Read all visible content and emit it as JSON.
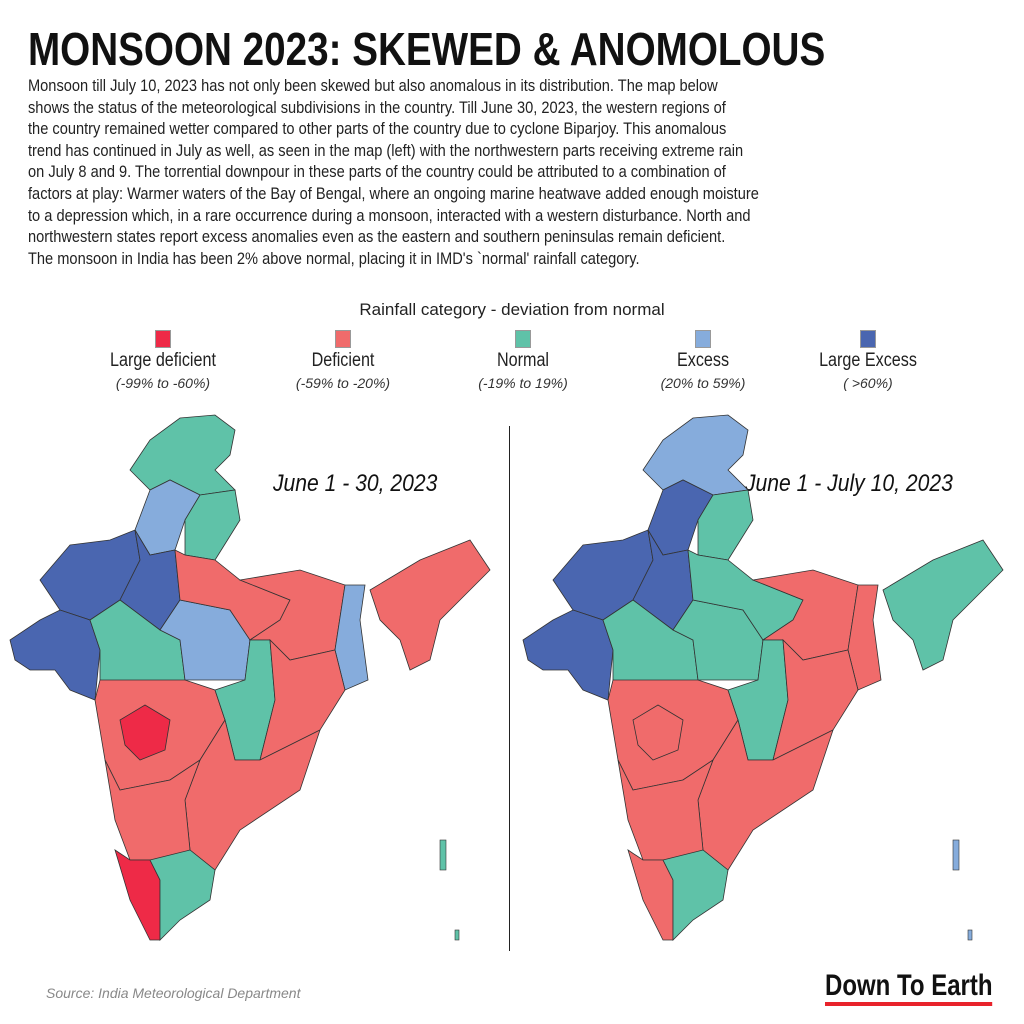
{
  "title": "MONSOON 2023: SKEWED & ANOMOLOUS",
  "paragraph_lines": [
    "Monsoon till July 10, 2023 has not only been skewed but also anomalous in its distribution. The map below",
    "shows the status of the meteorological subdivisions in the country. Till June 30, 2023, the western regions of",
    "the country remained wetter compared to other parts of the country due to cyclone Biparjoy. This anomalous",
    "trend has continued in July as well, as seen in the map (left) with the northwestern parts receiving extreme rain",
    "on July 8 and 9. The torrential downpour in these parts of the country could be attributed to a combination of",
    "factors at play: Warmer waters of the Bay of Bengal, where an ongoing marine heatwave added enough moisture",
    "to a depression which, in a rare occurrence during a monsoon, interacted with a western disturbance. North and",
    "northwestern states report excess anomalies even as the eastern and southern peninsulas remain deficient.",
    "The monsoon in India has been 2% above normal, placing it in IMD's `normal' rainfall category."
  ],
  "legend": {
    "title": "Rainfall category - deviation from normal",
    "items": [
      {
        "key": "LD",
        "label": "Large deficient",
        "range": "(-99% to -60%)",
        "color": "#ee2a47"
      },
      {
        "key": "D",
        "label": "Deficient",
        "range": "(-59% to -20%)",
        "color": "#f06b6b"
      },
      {
        "key": "N",
        "label": "Normal",
        "range": "(-19% to 19%)",
        "color": "#5fc2a8"
      },
      {
        "key": "E",
        "label": "Excess",
        "range": "(20% to 59%)",
        "color": "#86acdc"
      },
      {
        "key": "LE",
        "label": "Large Excess",
        "range": "( >60%)",
        "color": "#4a66b0"
      }
    ]
  },
  "maps": [
    {
      "period": "June 1 - 30, 2023",
      "regions": {
        "jk": "N",
        "punjab": "E",
        "uttarakhand": "N",
        "raj_w": "LE",
        "raj_e": "LE",
        "gujarat": "LE",
        "mp_w": "N",
        "mp_e": "E",
        "up": "D",
        "bihar": "D",
        "wb": "E",
        "ne": "D",
        "maha": "D",
        "marathwada": "LD",
        "chh": "N",
        "odisha": "D",
        "ap": "D",
        "karn": "D",
        "kerala": "LD",
        "tn": "N"
      }
    },
    {
      "period": "June 1 - July 10, 2023",
      "regions": {
        "jk": "E",
        "punjab": "LE",
        "uttarakhand": "N",
        "raj_w": "LE",
        "raj_e": "LE",
        "gujarat": "LE",
        "mp_w": "N",
        "mp_e": "N",
        "up": "N",
        "bihar": "D",
        "wb": "D",
        "ne": "N",
        "maha": "D",
        "marathwada": "D",
        "chh": "N",
        "odisha": "D",
        "ap": "D",
        "karn": "D",
        "kerala": "D",
        "tn": "N"
      }
    }
  ],
  "source": "Source:  India Meteorological Department",
  "logo": "Down To Earth"
}
